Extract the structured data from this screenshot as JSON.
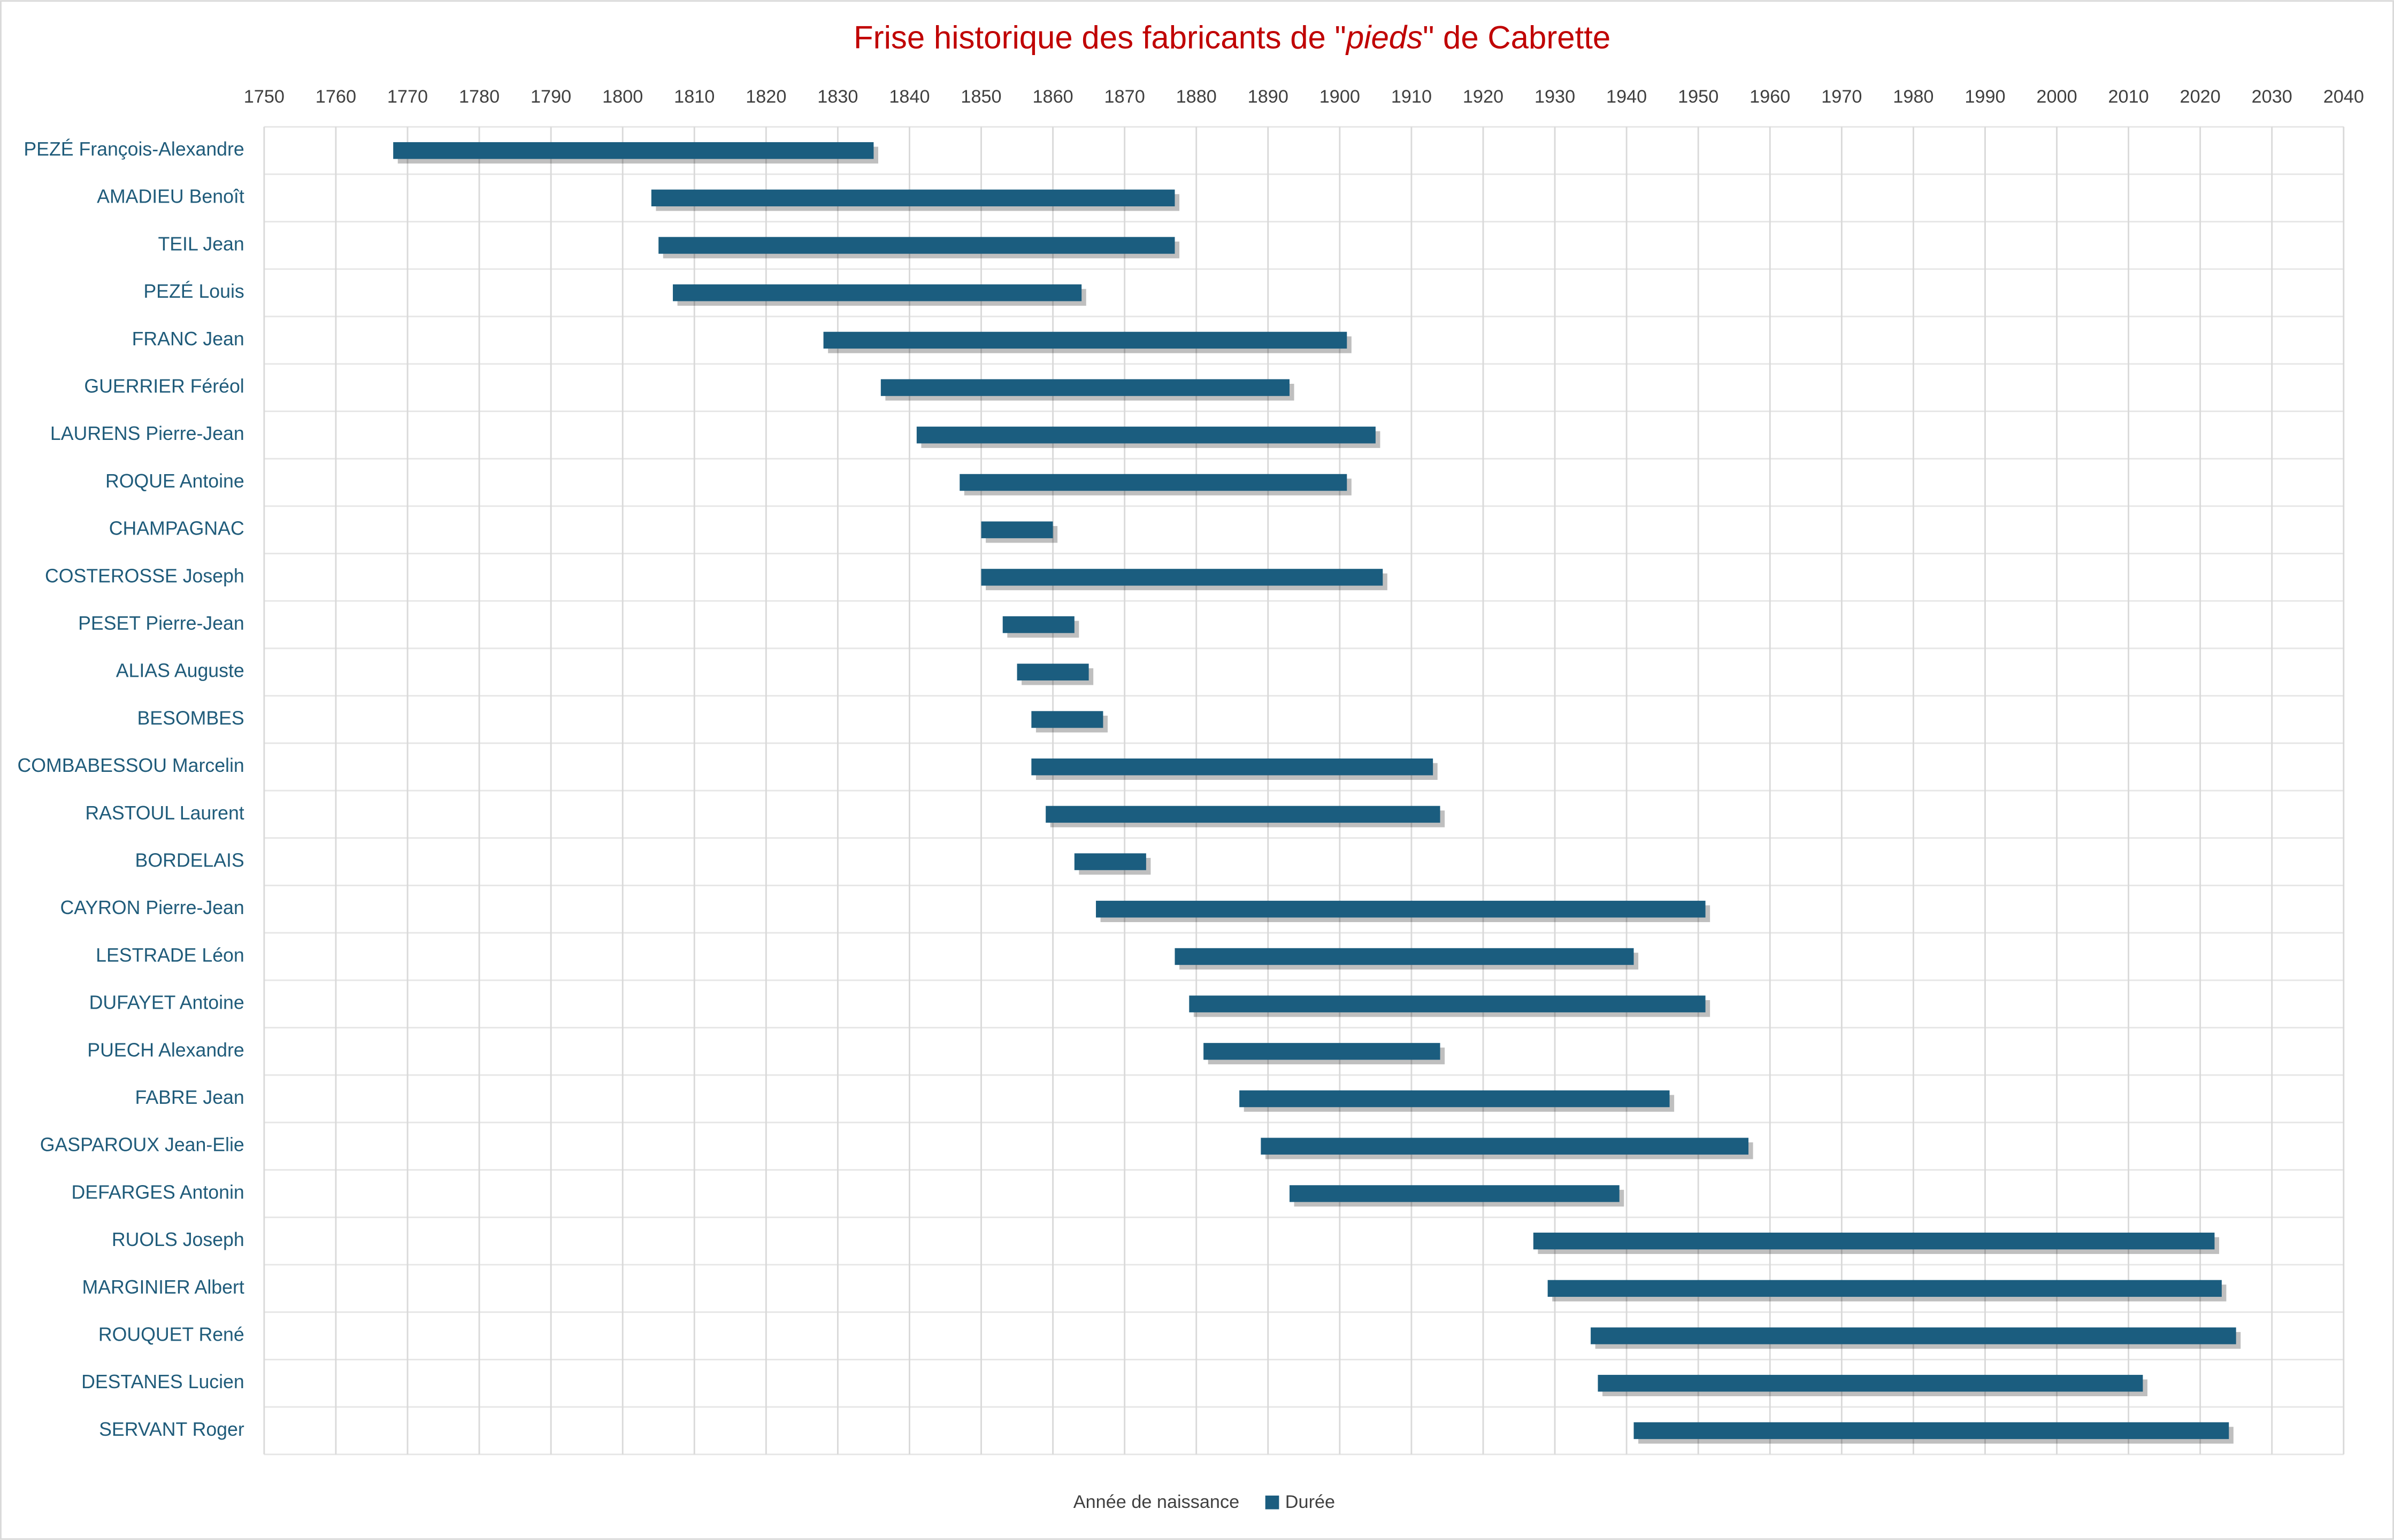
{
  "chart_data": {
    "type": "gantt",
    "title": [
      "Frise historique des fabricants de \"",
      "pieds",
      "\" de Cabrette"
    ],
    "categories": [
      "PEZÉ François-Alexandre",
      "AMADIEU Benoît",
      "TEIL Jean",
      "PEZÉ Louis",
      "FRANC Jean",
      "GUERRIER Féréol",
      "LAURENS Pierre-Jean",
      "ROQUE Antoine",
      "CHAMPAGNAC",
      "COSTEROSSE Joseph",
      "PESET Pierre-Jean",
      "ALIAS Auguste",
      "BESOMBES",
      "COMBABESSOU Marcelin",
      "RASTOUL Laurent",
      "BORDELAIS",
      "CAYRON Pierre-Jean",
      "LESTRADE Léon",
      "DUFAYET Antoine",
      "PUECH Alexandre",
      "FABRE Jean",
      "GASPAROUX Jean-Elie",
      "DEFARGES Antonin",
      "RUOLS Joseph",
      "MARGINIER Albert",
      "ROUQUET René",
      "DESTANES Lucien",
      "SERVANT Roger"
    ],
    "series": [
      {
        "name": "Année de naissance",
        "color": "none",
        "values": [
          1768,
          1804,
          1805,
          1807,
          1828,
          1836,
          1841,
          1847,
          1850,
          1850,
          1853,
          1855,
          1857,
          1857,
          1859,
          1863,
          1866,
          1877,
          1879,
          1881,
          1886,
          1889,
          1893,
          1927,
          1929,
          1935,
          1936,
          1941
        ]
      },
      {
        "name": "Durée",
        "color": "#1b5d7f",
        "values": [
          67,
          73,
          72,
          57,
          73,
          57,
          64,
          54,
          10,
          56,
          10,
          10,
          10,
          56,
          55,
          10,
          85,
          64,
          72,
          33,
          60,
          68,
          46,
          95,
          94,
          90,
          76,
          83
        ]
      }
    ],
    "xlim": [
      1750,
      2040
    ],
    "xticks": [
      1750,
      1760,
      1770,
      1780,
      1790,
      1800,
      1810,
      1820,
      1830,
      1840,
      1850,
      1860,
      1870,
      1880,
      1890,
      1900,
      1910,
      1920,
      1930,
      1940,
      1950,
      1960,
      1970,
      1980,
      1990,
      2000,
      2010,
      2020,
      2030,
      2040
    ],
    "grid": true,
    "legend": "bottom"
  }
}
